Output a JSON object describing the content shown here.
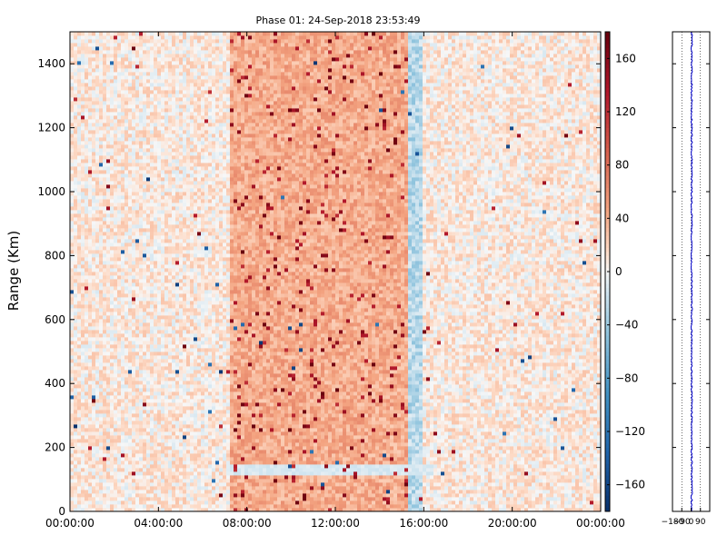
{
  "title": "Phase 01: 24-Sep-2018 23:53:49",
  "chart_data": [
    {
      "type": "heatmap",
      "ylabel": "Range (Km)",
      "yticks": [
        0,
        200,
        400,
        600,
        800,
        1000,
        1200,
        1400
      ],
      "ylim": [
        0,
        1500
      ],
      "xticks": [
        "00:00:00",
        "04:00:00",
        "08:00:00",
        "12:00:00",
        "16:00:00",
        "20:00:00",
        "00:00:00"
      ],
      "xlim_hours": [
        0,
        24
      ],
      "colorbar": {
        "ticks": [
          160,
          120,
          80,
          40,
          0,
          -40,
          -80,
          -120,
          -160
        ],
        "range": [
          -180,
          180
        ],
        "colormap": "RdBu_r",
        "low_color": "#08306b",
        "mid_color": "#f7f7f7",
        "high_color": "#67000d"
      },
      "regions": [
        {
          "hours": [
            0,
            7.2
          ],
          "level": "slightly-positive"
        },
        {
          "hours": [
            7.2,
            15.3
          ],
          "level": "positive"
        },
        {
          "hours": [
            15.3,
            16.0
          ],
          "level": "negative"
        },
        {
          "hours": [
            16.0,
            24
          ],
          "level": "slightly-positive"
        }
      ],
      "grid": false
    },
    {
      "type": "line",
      "xticks": [
        "-180",
        "-90",
        "0",
        "90"
      ],
      "xlim": [
        -180,
        180
      ],
      "ylim": [
        0,
        1500
      ],
      "series_color": "#0000cc",
      "grid": true
    }
  ]
}
